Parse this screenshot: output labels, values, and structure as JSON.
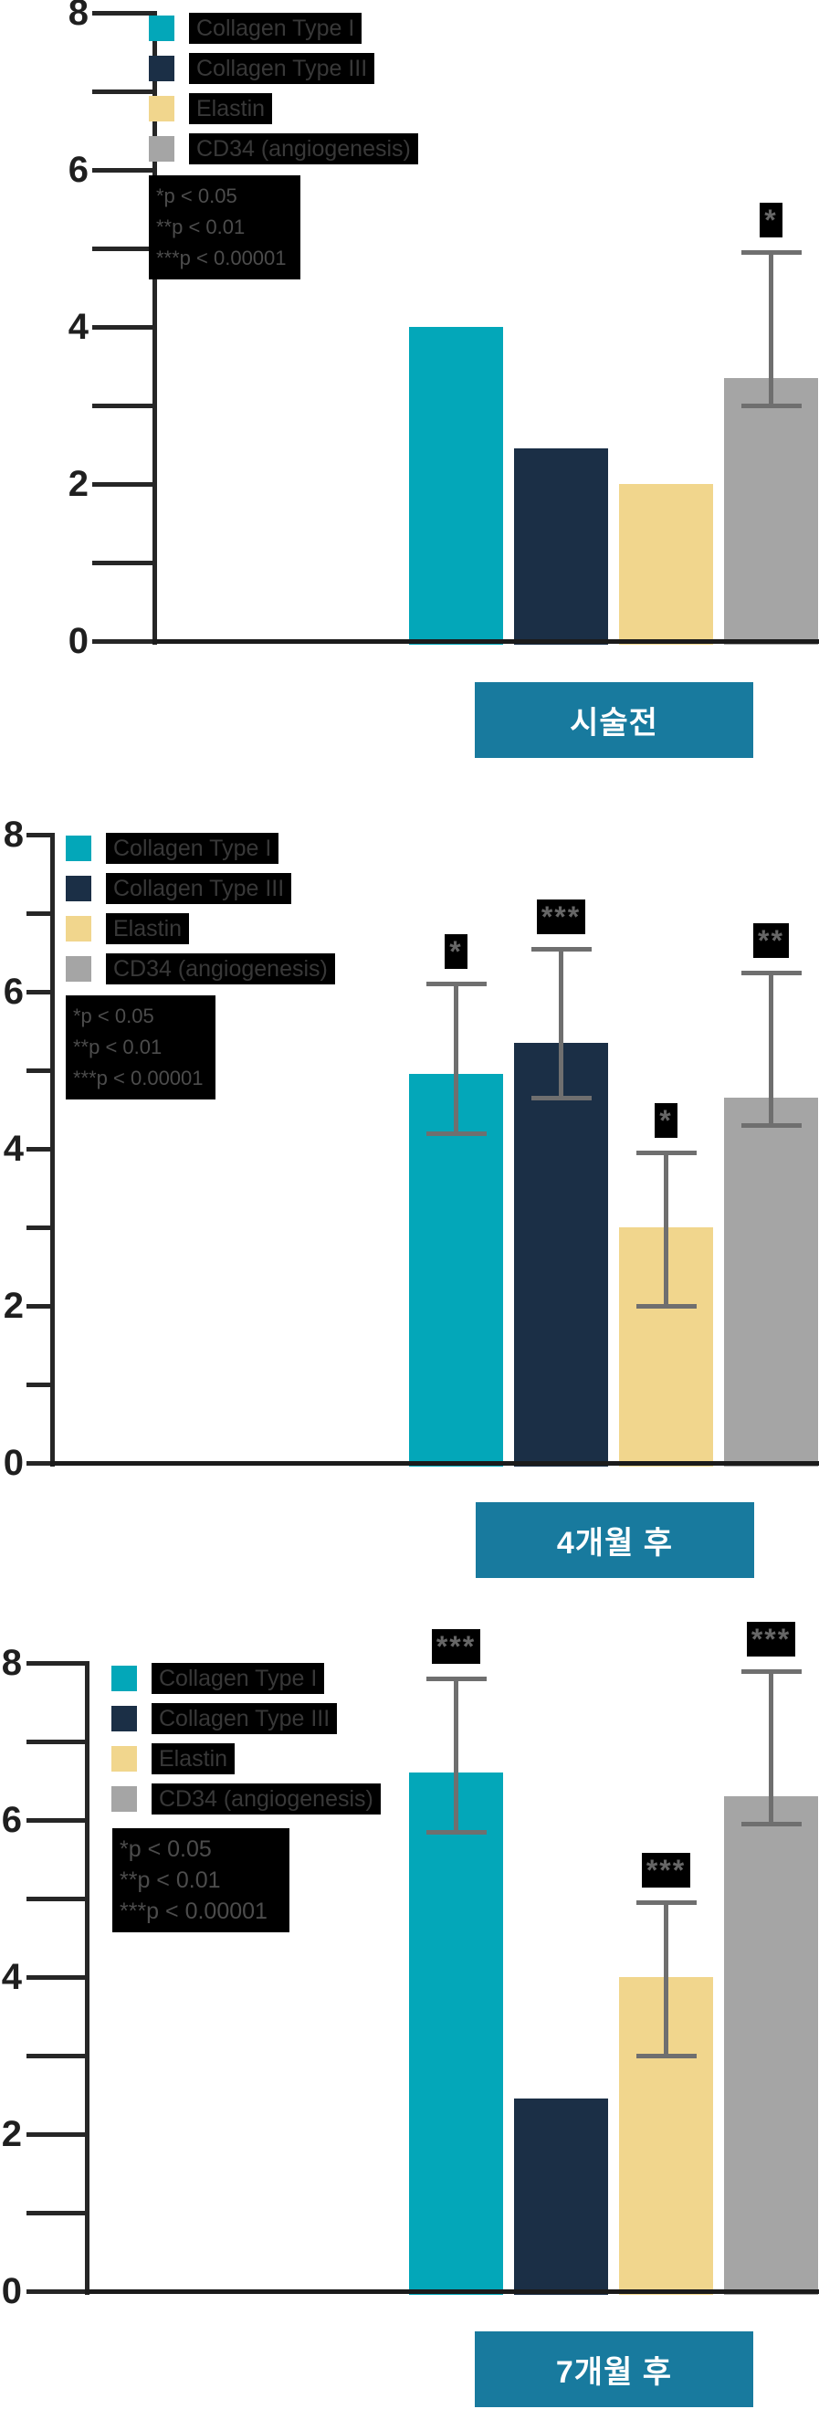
{
  "legend": {
    "items": [
      {
        "label": "Collagen Type I",
        "color": "#03a7b9"
      },
      {
        "label": "Collagen Type III",
        "color": "#1b2f46"
      },
      {
        "label": "Elastin",
        "color": "#f1d68d"
      },
      {
        "label": "CD34 (angiogenesis)",
        "color": "#a5a5a5"
      }
    ],
    "significance_notes": [
      "*p < 0.05",
      "**p < 0.01",
      "***p < 0.00001"
    ]
  },
  "colors": {
    "error_bar": "#6f6f6f",
    "axis": "#262626",
    "title_box": "#187a9e",
    "title_text": "#ffffff"
  },
  "chart_data": [
    {
      "type": "bar",
      "title": "시술전",
      "categories": [
        "Collagen Type I",
        "Collagen Type III",
        "Elastin",
        "CD34 (angiogenesis)"
      ],
      "values": [
        4.0,
        2.45,
        2.0,
        3.35
      ],
      "error_bars": [
        null,
        null,
        null,
        {
          "low": 3.0,
          "high": 4.95
        }
      ],
      "significance": [
        null,
        null,
        null,
        "*"
      ],
      "ylim": [
        0,
        8
      ],
      "yticks": [
        0,
        2,
        4,
        6,
        8
      ],
      "minor_ticks_every": 1,
      "grid": false,
      "legend_position": "upper-left"
    },
    {
      "type": "bar",
      "title": "4개월 후",
      "categories": [
        "Collagen Type I",
        "Collagen Type III",
        "Elastin",
        "CD34 (angiogenesis)"
      ],
      "values": [
        4.95,
        5.35,
        3.0,
        4.65
      ],
      "error_bars": [
        {
          "low": 4.2,
          "high": 6.1
        },
        {
          "low": 4.65,
          "high": 6.55
        },
        {
          "low": 2.0,
          "high": 3.95
        },
        {
          "low": 4.3,
          "high": 6.25
        }
      ],
      "significance": [
        "*",
        "***",
        "*",
        "**"
      ],
      "ylim": [
        0,
        8
      ],
      "yticks": [
        0,
        2,
        4,
        6,
        8
      ],
      "minor_ticks_every": 1,
      "grid": false,
      "legend_position": "upper-left"
    },
    {
      "type": "bar",
      "title": "7개월 후",
      "categories": [
        "Collagen Type I",
        "Collagen Type III",
        "Elastin",
        "CD34 (angiogenesis)"
      ],
      "values": [
        6.6,
        2.45,
        4.0,
        6.3
      ],
      "error_bars": [
        {
          "low": 5.85,
          "high": 7.8
        },
        null,
        {
          "low": 3.0,
          "high": 4.95
        },
        {
          "low": 5.95,
          "high": 7.9
        }
      ],
      "significance": [
        "***",
        null,
        "***",
        "***"
      ],
      "ylim": [
        0,
        8
      ],
      "yticks": [
        0,
        2,
        4,
        6,
        8
      ],
      "minor_ticks_every": 1,
      "grid": false,
      "legend_position": "upper-left"
    }
  ]
}
